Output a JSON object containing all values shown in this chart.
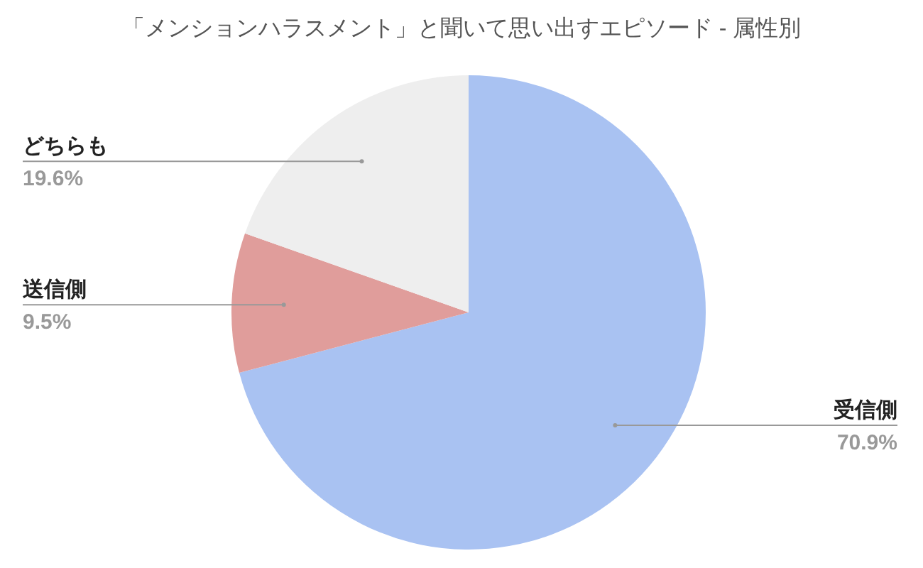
{
  "chart_data": {
    "type": "pie",
    "title": "「メンションハラスメント」と聞いて思い出すエピソード - 属性別",
    "categories": [
      "受信側",
      "送信側",
      "どちらも"
    ],
    "values": [
      70.9,
      9.5,
      19.6
    ],
    "colors": [
      "#a9c2f2",
      "#e09d9b",
      "#eeeeee"
    ],
    "value_labels": [
      "70.9%",
      "9.5%",
      "19.6%"
    ],
    "legend": false
  }
}
